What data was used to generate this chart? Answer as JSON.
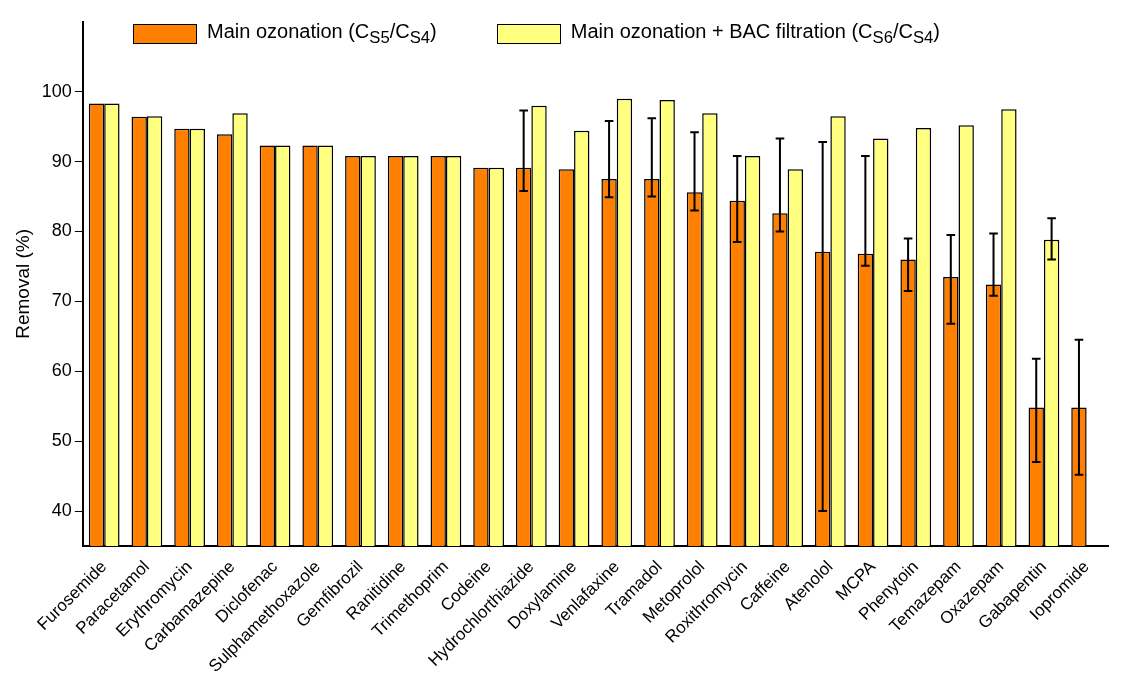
{
  "chart_data": {
    "type": "bar",
    "ylabel": "Removal (%)",
    "categories": [
      "Furosemide",
      "Paracetamol",
      "Erythromycin",
      "Carbamazepine",
      "Diclofenac",
      "Sulphamethoxazole",
      "Gemfibrozil",
      "Ranitidine",
      "Trimethoprim",
      "Codeine",
      "Hydrochlorthiazide",
      "Doxylamine",
      "Venlafaxine",
      "Tramadol",
      "Metoprolol",
      "Roxithromycin",
      "Caffeine",
      "Atenolol",
      "MCPA",
      "Phenytoin",
      "Temazepam",
      "Oxazepam",
      "Gabapentin",
      "Iopromide"
    ],
    "series": [
      {
        "name": "Main ozonation (C$_{S5}$/C$_{S4}$)",
        "color": "#ff8000",
        "values": [
          98.3,
          96.4,
          94.7,
          93.9,
          92.3,
          92.3,
          90.8,
          90.8,
          90.8,
          89.1,
          89.1,
          88.9,
          87.5,
          87.5,
          85.6,
          84.4,
          82.6,
          77.1,
          76.8,
          76.0,
          73.5,
          72.4,
          54.8,
          54.8
        ],
        "errors": [
          null,
          null,
          null,
          null,
          null,
          null,
          null,
          null,
          null,
          null,
          [
            85.8,
            97.3
          ],
          null,
          [
            84.9,
            95.8
          ],
          [
            85.0,
            96.2
          ],
          [
            83.0,
            94.2
          ],
          [
            78.5,
            90.8
          ],
          [
            80.0,
            93.3
          ],
          [
            40.0,
            92.8
          ],
          [
            75.1,
            90.8
          ],
          [
            71.5,
            79.0
          ],
          [
            66.8,
            79.5
          ],
          [
            70.8,
            79.7
          ],
          [
            47.0,
            61.8
          ],
          [
            45.2,
            64.5
          ]
        ]
      },
      {
        "name": "Main ozonation + BAC filtration (C$_{S6}$/C$_{S4}$)",
        "color": "#ffff80",
        "values": [
          98.3,
          96.5,
          94.7,
          96.9,
          92.3,
          92.3,
          90.8,
          90.8,
          90.8,
          89.1,
          98.0,
          94.4,
          99.0,
          98.8,
          96.9,
          90.8,
          88.9,
          96.5,
          93.3,
          94.8,
          95.2,
          97.5,
          78.8,
          null
        ],
        "errors": [
          null,
          null,
          null,
          null,
          null,
          null,
          null,
          null,
          null,
          null,
          null,
          null,
          null,
          null,
          null,
          null,
          null,
          null,
          null,
          null,
          null,
          null,
          [
            76.0,
            81.9
          ],
          null
        ]
      }
    ],
    "ylim": [
      35,
      110
    ],
    "yticks": [
      40,
      50,
      60,
      70,
      80,
      90,
      100
    ],
    "grid": false,
    "legend": "top"
  }
}
